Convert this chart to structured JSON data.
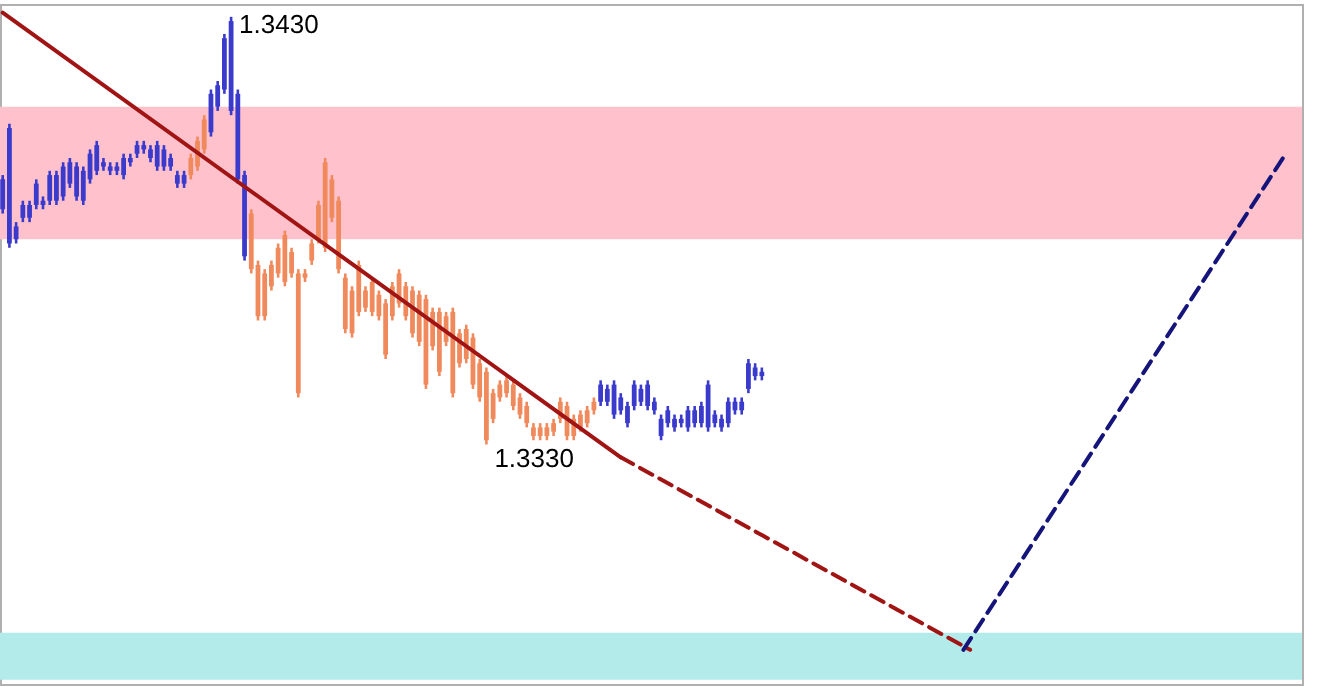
{
  "chart_data": {
    "type": "candlestick",
    "categories": [
      null,
      null,
      null,
      null,
      null,
      null,
      null,
      null,
      null,
      null,
      null,
      null,
      null,
      null,
      null,
      null,
      null,
      null,
      null,
      null,
      null,
      null,
      null,
      null,
      null,
      null,
      null,
      null,
      null,
      null,
      null,
      null,
      null,
      null,
      null,
      null,
      null,
      null,
      null,
      null,
      null,
      null,
      null,
      null,
      null,
      null,
      null,
      null,
      null,
      null,
      null,
      null,
      null,
      null,
      null,
      null,
      null,
      null,
      null,
      null,
      null,
      null,
      null,
      null,
      null,
      null,
      null,
      null,
      null,
      null,
      null,
      null,
      null,
      null,
      null,
      null,
      null,
      null,
      null,
      null,
      null,
      null,
      null,
      null,
      null,
      null,
      null,
      null,
      null,
      null,
      null,
      null,
      null,
      null,
      null,
      null,
      null,
      null,
      null,
      null,
      null,
      null,
      null,
      null,
      null,
      null,
      null,
      null,
      null,
      null,
      null,
      null,
      null,
      null,
      null,
      null,
      null,
      null,
      null,
      null,
      null,
      null,
      null,
      null,
      null,
      null,
      null,
      null,
      null,
      null,
      null,
      null,
      null,
      null,
      null,
      null,
      null,
      null,
      null,
      null,
      null,
      null,
      null,
      null,
      null,
      null,
      null,
      null,
      null,
      null,
      null,
      null,
      null,
      null,
      null,
      null,
      null,
      null,
      null,
      null,
      null,
      null,
      null,
      null,
      null,
      null,
      null,
      null,
      null,
      null,
      null,
      null,
      null,
      null,
      null,
      null,
      null,
      null,
      null,
      null,
      null,
      null,
      null,
      null,
      null,
      null,
      null,
      null,
      null,
      null,
      null,
      null,
      null,
      null
    ],
    "ohlc": [
      [
        1.3385,
        1.3393,
        1.3384,
        1.3392
      ],
      [
        1.3377,
        1.3405,
        1.3376,
        1.3404
      ],
      [
        1.3378,
        1.3382,
        1.3377,
        1.3381
      ],
      [
        1.3383,
        1.3387,
        1.3382,
        1.3386
      ],
      [
        1.3383,
        1.3387,
        1.3382,
        1.3386
      ],
      [
        1.3386,
        1.3392,
        1.3385,
        1.3391
      ],
      [
        1.3386,
        1.3388,
        1.3385,
        1.3387
      ],
      [
        1.3387,
        1.3394,
        1.3386,
        1.3393
      ],
      [
        1.3387,
        1.3394,
        1.3386,
        1.3393
      ],
      [
        1.3388,
        1.3396,
        1.3387,
        1.3395
      ],
      [
        1.3391,
        1.3397,
        1.339,
        1.3396
      ],
      [
        1.3388,
        1.3396,
        1.3387,
        1.3395
      ],
      [
        1.3387,
        1.3395,
        1.3386,
        1.3394
      ],
      [
        1.3392,
        1.3399,
        1.3391,
        1.3398
      ],
      [
        1.3394,
        1.3401,
        1.3393,
        1.34
      ],
      [
        1.3395,
        1.3397,
        1.3394,
        1.3396
      ],
      [
        1.3394,
        1.3396,
        1.3393,
        1.3395
      ],
      [
        1.3394,
        1.3396,
        1.3393,
        1.3395
      ],
      [
        1.3393,
        1.3398,
        1.3392,
        1.3397
      ],
      [
        1.3396,
        1.3398,
        1.3395,
        1.3397
      ],
      [
        1.3398,
        1.3401,
        1.3397,
        1.34
      ],
      [
        1.3399,
        1.3401,
        1.3398,
        1.34
      ],
      [
        1.3397,
        1.34,
        1.3396,
        1.3399
      ],
      [
        1.3395,
        1.3401,
        1.3394,
        1.34
      ],
      [
        1.3395,
        1.34,
        1.3394,
        1.3399
      ],
      [
        1.3395,
        1.3398,
        1.3394,
        1.3397
      ],
      [
        1.3391,
        1.3394,
        1.339,
        1.3393
      ],
      [
        1.3391,
        1.3394,
        1.339,
        1.3393
      ],
      [
        1.3397,
        1.3398,
        1.3392,
        1.3393
      ],
      [
        1.3401,
        1.3402,
        1.3394,
        1.3395
      ],
      [
        1.3406,
        1.3407,
        1.3398,
        1.3399
      ],
      [
        1.3403,
        1.3413,
        1.3402,
        1.3412
      ],
      [
        1.3409,
        1.3415,
        1.3408,
        1.3414
      ],
      [
        1.3413,
        1.3426,
        1.3412,
        1.3425
      ],
      [
        1.3408,
        1.343,
        1.3407,
        1.3429
      ],
      [
        1.3392,
        1.3413,
        1.3391,
        1.3412
      ],
      [
        1.3374,
        1.3394,
        1.3373,
        1.3393
      ],
      [
        1.3384,
        1.3385,
        1.337,
        1.3371
      ],
      [
        1.3372,
        1.3373,
        1.3359,
        1.336
      ],
      [
        1.337,
        1.3371,
        1.3359,
        1.336
      ],
      [
        1.3372,
        1.3373,
        1.3366,
        1.3367
      ],
      [
        1.3376,
        1.3377,
        1.3369,
        1.337
      ],
      [
        1.3379,
        1.338,
        1.3367,
        1.3368
      ],
      [
        1.3375,
        1.3376,
        1.3369,
        1.337
      ],
      [
        1.337,
        1.3371,
        1.3341,
        1.3342
      ],
      [
        1.337,
        1.3371,
        1.3368,
        1.3369
      ],
      [
        1.3377,
        1.3378,
        1.3372,
        1.3373
      ],
      [
        1.3386,
        1.3387,
        1.3377,
        1.3378
      ],
      [
        1.3396,
        1.3397,
        1.3375,
        1.3376
      ],
      [
        1.3392,
        1.3393,
        1.3382,
        1.3383
      ],
      [
        1.3387,
        1.3388,
        1.337,
        1.3371
      ],
      [
        1.3369,
        1.337,
        1.3356,
        1.3357
      ],
      [
        1.3366,
        1.3367,
        1.3355,
        1.3356
      ],
      [
        1.3372,
        1.3373,
        1.336,
        1.3361
      ],
      [
        1.3366,
        1.3367,
        1.3361,
        1.3362
      ],
      [
        1.3368,
        1.3369,
        1.336,
        1.3361
      ],
      [
        1.3365,
        1.3366,
        1.3359,
        1.336
      ],
      [
        1.3363,
        1.3364,
        1.335,
        1.3351
      ],
      [
        1.3367,
        1.3368,
        1.3359,
        1.336
      ],
      [
        1.337,
        1.3371,
        1.3362,
        1.3363
      ],
      [
        1.3367,
        1.3368,
        1.3359,
        1.336
      ],
      [
        1.3366,
        1.3367,
        1.3355,
        1.3356
      ],
      [
        1.3365,
        1.3366,
        1.3353,
        1.3354
      ],
      [
        1.3364,
        1.3365,
        1.3343,
        1.3344
      ],
      [
        1.3361,
        1.3362,
        1.3352,
        1.3353
      ],
      [
        1.3361,
        1.3362,
        1.3346,
        1.3347
      ],
      [
        1.336,
        1.3361,
        1.3353,
        1.3354
      ],
      [
        1.3361,
        1.3362,
        1.3341,
        1.3342
      ],
      [
        1.3356,
        1.3357,
        1.3348,
        1.3349
      ],
      [
        1.3357,
        1.3358,
        1.3349,
        1.335
      ],
      [
        1.3355,
        1.3356,
        1.3343,
        1.3344
      ],
      [
        1.3349,
        1.335,
        1.334,
        1.3341
      ],
      [
        1.3347,
        1.3348,
        1.333,
        1.3331
      ],
      [
        1.3342,
        1.3343,
        1.3335,
        1.3336
      ],
      [
        1.3344,
        1.3345,
        1.334,
        1.3341
      ],
      [
        1.3345,
        1.3346,
        1.3341,
        1.3342
      ],
      [
        1.3344,
        1.3345,
        1.3338,
        1.3339
      ],
      [
        1.3341,
        1.3342,
        1.3336,
        1.3337
      ],
      [
        1.3339,
        1.334,
        1.3334,
        1.3335
      ],
      [
        1.3334,
        1.3335,
        1.3331,
        1.3332
      ],
      [
        1.3334,
        1.3335,
        1.3331,
        1.3332
      ],
      [
        1.3334,
        1.3335,
        1.3331,
        1.3332
      ],
      [
        1.3335,
        1.3336,
        1.3332,
        1.3333
      ],
      [
        1.334,
        1.3341,
        1.3335,
        1.3336
      ],
      [
        1.3339,
        1.334,
        1.3331,
        1.3332
      ],
      [
        1.3336,
        1.3337,
        1.3331,
        1.3332
      ],
      [
        1.3337,
        1.3338,
        1.3333,
        1.3334
      ],
      [
        1.3338,
        1.3339,
        1.3334,
        1.3335
      ],
      [
        1.334,
        1.3341,
        1.3337,
        1.3338
      ],
      [
        1.334,
        1.3345,
        1.3339,
        1.3344
      ],
      [
        1.334,
        1.3344,
        1.3339,
        1.3343
      ],
      [
        1.3337,
        1.3345,
        1.3336,
        1.3344
      ],
      [
        1.3338,
        1.3342,
        1.3337,
        1.3341
      ],
      [
        1.3335,
        1.334,
        1.3334,
        1.3339
      ],
      [
        1.3339,
        1.3345,
        1.3338,
        1.3344
      ],
      [
        1.334,
        1.3344,
        1.3339,
        1.3343
      ],
      [
        1.3339,
        1.3345,
        1.3338,
        1.3344
      ],
      [
        1.3338,
        1.3341,
        1.3337,
        1.334
      ],
      [
        1.3332,
        1.3337,
        1.3331,
        1.3336
      ],
      [
        1.3335,
        1.3339,
        1.3334,
        1.3338
      ],
      [
        1.3334,
        1.3337,
        1.3333,
        1.3336
      ],
      [
        1.3335,
        1.3337,
        1.3334,
        1.3336
      ],
      [
        1.3334,
        1.3339,
        1.3333,
        1.3338
      ],
      [
        1.3335,
        1.3339,
        1.3334,
        1.3338
      ],
      [
        1.3335,
        1.334,
        1.3334,
        1.3339
      ],
      [
        1.3334,
        1.3345,
        1.3333,
        1.3344
      ],
      [
        1.3335,
        1.3338,
        1.3334,
        1.3337
      ],
      [
        1.3334,
        1.3337,
        1.3333,
        1.3336
      ],
      [
        1.3335,
        1.3341,
        1.3334,
        1.334
      ],
      [
        1.3338,
        1.3341,
        1.3337,
        1.334
      ],
      [
        1.3338,
        1.3341,
        1.3337,
        1.334
      ],
      [
        1.3343,
        1.335,
        1.3342,
        1.3349
      ],
      [
        1.3346,
        1.3349,
        1.3345,
        1.3348
      ],
      [
        1.3346,
        1.3348,
        1.3345,
        1.3347
      ],
      null,
      null,
      null,
      null,
      null,
      null,
      null,
      null,
      null,
      null,
      null,
      null,
      null,
      null,
      null,
      null,
      null,
      null,
      null,
      null,
      null,
      null,
      null,
      null,
      null,
      null,
      null,
      null,
      null,
      null,
      null,
      null,
      null,
      null,
      null,
      null,
      null,
      null,
      null,
      null,
      null,
      null,
      null,
      null,
      null,
      null,
      null,
      null,
      null,
      null,
      null,
      null,
      null,
      null,
      null,
      null,
      null,
      null,
      null,
      null,
      null,
      null,
      null,
      null,
      null,
      null,
      null,
      null,
      null,
      null,
      null,
      null,
      null,
      null,
      null,
      null,
      null,
      null,
      null,
      null
    ],
    "colors": [
      "#3a3acc",
      "#3a3acc",
      "#3a3acc",
      "#3a3acc",
      "#3a3acc",
      "#3a3acc",
      "#3a3acc",
      "#3a3acc",
      "#3a3acc",
      "#3a3acc",
      "#3a3acc",
      "#3a3acc",
      "#3a3acc",
      "#3a3acc",
      "#3a3acc",
      "#3a3acc",
      "#3a3acc",
      "#3a3acc",
      "#3a3acc",
      "#3a3acc",
      "#3a3acc",
      "#3a3acc",
      "#3a3acc",
      "#3a3acc",
      "#3a3acc",
      "#3a3acc",
      "#3a3acc",
      "#3a3acc",
      "#f08a5d",
      "#f08a5d",
      "#f08a5d",
      "#3a3acc",
      "#3a3acc",
      "#3a3acc",
      "#3a3acc",
      "#3a3acc",
      "#3a3acc",
      "#f08a5d",
      "#f08a5d",
      "#f08a5d",
      "#f08a5d",
      "#f08a5d",
      "#f08a5d",
      "#f08a5d",
      "#f08a5d",
      "#f08a5d",
      "#f08a5d",
      "#f08a5d",
      "#f08a5d",
      "#f08a5d",
      "#f08a5d",
      "#f08a5d",
      "#f08a5d",
      "#f08a5d",
      "#f08a5d",
      "#f08a5d",
      "#f08a5d",
      "#f08a5d",
      "#f08a5d",
      "#f08a5d",
      "#f08a5d",
      "#f08a5d",
      "#f08a5d",
      "#f08a5d",
      "#f08a5d",
      "#f08a5d",
      "#f08a5d",
      "#f08a5d",
      "#f08a5d",
      "#f08a5d",
      "#f08a5d",
      "#f08a5d",
      "#f08a5d",
      "#f08a5d",
      "#f08a5d",
      "#f08a5d",
      "#f08a5d",
      "#f08a5d",
      "#f08a5d",
      "#f08a5d",
      "#f08a5d",
      "#f08a5d",
      "#f08a5d",
      "#f08a5d",
      "#f08a5d",
      "#f08a5d",
      "#f08a5d",
      "#f08a5d",
      "#f08a5d",
      "#3a3acc",
      "#3a3acc",
      "#3a3acc",
      "#3a3acc",
      "#3a3acc",
      "#3a3acc",
      "#3a3acc",
      "#3a3acc",
      "#3a3acc",
      "#3a3acc",
      "#3a3acc",
      "#3a3acc",
      "#3a3acc",
      "#3a3acc",
      "#3a3acc",
      "#3a3acc",
      "#3a3acc",
      "#3a3acc",
      "#3a3acc",
      "#3a3acc",
      "#3a3acc",
      "#3a3acc",
      "#3a3acc",
      "#3a3acc",
      "#3a3acc",
      null,
      null,
      null,
      null,
      null,
      null,
      null,
      null,
      null,
      null,
      null,
      null,
      null,
      null,
      null,
      null,
      null,
      null,
      null,
      null,
      null,
      null,
      null,
      null,
      null,
      null,
      null,
      null,
      null,
      null,
      null,
      null,
      null,
      null,
      null,
      null,
      null,
      null,
      null,
      null,
      null,
      null,
      null,
      null,
      null,
      null,
      null,
      null,
      null,
      null,
      null,
      null,
      null,
      null,
      null,
      null,
      null,
      null,
      null,
      null,
      null,
      null,
      null,
      null,
      null,
      null,
      null,
      null,
      null,
      null,
      null,
      null,
      null,
      null,
      null,
      null,
      null,
      null,
      null,
      null
    ],
    "series": [
      {
        "type": "line",
        "color": "#a01414",
        "line_style": "solid",
        "values": [
          1.3431,
          null,
          null,
          null,
          null,
          null,
          null,
          null,
          null,
          null,
          null,
          null,
          null,
          null,
          null,
          null,
          null,
          null,
          null,
          null,
          null,
          null,
          null,
          null,
          null,
          null,
          null,
          null,
          null,
          null,
          null,
          null,
          null,
          null,
          null,
          null,
          null,
          null,
          null,
          null,
          null,
          null,
          null,
          null,
          null,
          null,
          null,
          null,
          null,
          null,
          null,
          null,
          null,
          null,
          null,
          null,
          null,
          null,
          null,
          null,
          null,
          null,
          null,
          null,
          null,
          null,
          null,
          null,
          null,
          null,
          null,
          null,
          null,
          null,
          null,
          null,
          null,
          null,
          null,
          null,
          null,
          null,
          null,
          null,
          null,
          null,
          null,
          null,
          null,
          null,
          null,
          null,
          1.3327,
          null,
          null,
          null,
          null,
          null,
          null,
          null,
          null,
          null,
          null,
          null,
          null,
          null,
          null,
          null,
          null,
          null,
          null,
          null,
          null,
          null,
          null,
          null,
          null,
          null,
          null,
          null,
          null,
          null,
          null,
          null,
          null,
          null,
          null,
          null,
          null,
          null,
          null,
          null,
          null,
          null,
          null,
          null,
          null,
          null,
          null,
          null,
          null,
          null,
          null,
          null,
          null,
          null,
          null,
          null,
          null,
          null,
          null,
          null,
          null,
          null,
          null,
          null,
          null,
          null,
          null,
          null,
          null,
          null,
          null,
          null,
          null,
          null,
          null,
          null,
          null,
          null,
          null,
          null,
          null,
          null,
          null,
          null,
          null,
          null,
          null,
          null,
          null,
          null,
          null,
          null,
          null,
          null,
          null,
          null,
          null,
          null,
          null,
          null,
          null,
          null
        ]
      },
      {
        "type": "line",
        "color": "#a01414",
        "line_style": "dashed",
        "values": [
          null,
          null,
          null,
          null,
          null,
          null,
          null,
          null,
          null,
          null,
          null,
          null,
          null,
          null,
          null,
          null,
          null,
          null,
          null,
          null,
          null,
          null,
          null,
          null,
          null,
          null,
          null,
          null,
          null,
          null,
          null,
          null,
          null,
          null,
          null,
          null,
          null,
          null,
          null,
          null,
          null,
          null,
          null,
          null,
          null,
          null,
          null,
          null,
          null,
          null,
          null,
          null,
          null,
          null,
          null,
          null,
          null,
          null,
          null,
          null,
          null,
          null,
          null,
          null,
          null,
          null,
          null,
          null,
          null,
          null,
          null,
          null,
          null,
          null,
          null,
          null,
          null,
          null,
          null,
          null,
          null,
          null,
          null,
          null,
          null,
          null,
          null,
          null,
          null,
          null,
          null,
          null,
          1.3327,
          null,
          null,
          null,
          null,
          null,
          null,
          null,
          null,
          null,
          null,
          null,
          null,
          null,
          null,
          null,
          null,
          null,
          null,
          null,
          null,
          null,
          null,
          null,
          null,
          null,
          null,
          null,
          null,
          null,
          null,
          null,
          null,
          null,
          null,
          null,
          null,
          null,
          null,
          null,
          null,
          null,
          null,
          null,
          null,
          null,
          null,
          null,
          null,
          null,
          null,
          null,
          1.3282,
          null,
          null,
          null,
          null,
          null,
          null,
          null,
          null,
          null,
          null,
          null,
          null,
          null,
          null,
          null,
          null,
          null,
          null,
          null,
          null,
          null,
          null,
          null,
          null,
          null,
          null,
          null,
          null,
          null,
          null,
          null,
          null,
          null,
          null,
          null,
          null,
          null,
          null,
          null,
          null,
          null,
          null,
          null,
          null,
          null,
          null,
          null,
          null,
          null
        ]
      },
      {
        "type": "line",
        "color": "#14147a",
        "line_style": "dashed",
        "values": [
          null,
          null,
          null,
          null,
          null,
          null,
          null,
          null,
          null,
          null,
          null,
          null,
          null,
          null,
          null,
          null,
          null,
          null,
          null,
          null,
          null,
          null,
          null,
          null,
          null,
          null,
          null,
          null,
          null,
          null,
          null,
          null,
          null,
          null,
          null,
          null,
          null,
          null,
          null,
          null,
          null,
          null,
          null,
          null,
          null,
          null,
          null,
          null,
          null,
          null,
          null,
          null,
          null,
          null,
          null,
          null,
          null,
          null,
          null,
          null,
          null,
          null,
          null,
          null,
          null,
          null,
          null,
          null,
          null,
          null,
          null,
          null,
          null,
          null,
          null,
          null,
          null,
          null,
          null,
          null,
          null,
          null,
          null,
          null,
          null,
          null,
          null,
          null,
          null,
          null,
          null,
          null,
          null,
          null,
          null,
          null,
          null,
          null,
          null,
          null,
          null,
          null,
          null,
          null,
          null,
          null,
          null,
          null,
          null,
          null,
          null,
          null,
          null,
          null,
          null,
          null,
          null,
          null,
          null,
          null,
          null,
          null,
          null,
          null,
          null,
          null,
          null,
          null,
          null,
          null,
          null,
          null,
          null,
          null,
          null,
          null,
          null,
          null,
          null,
          null,
          null,
          null,
          null,
          1.3282,
          null,
          null,
          null,
          null,
          null,
          null,
          null,
          null,
          null,
          null,
          null,
          null,
          null,
          null,
          null,
          null,
          null,
          null,
          null,
          null,
          null,
          null,
          null,
          null,
          null,
          null,
          null,
          null,
          null,
          null,
          null,
          null,
          null,
          null,
          null,
          null,
          null,
          null,
          null,
          null,
          null,
          null,
          null,
          null,
          null,
          null,
          null,
          1.3398,
          null,
          null
        ]
      }
    ],
    "bands": [
      {
        "axis": "y",
        "from": 1.3378,
        "to": 1.3409,
        "color": "#ffc2cc"
      },
      {
        "axis": "y",
        "from": 1.3275,
        "to": 1.3286,
        "color": "#b3ebeb"
      }
    ],
    "annotations": [
      "1.3430",
      "1.3330"
    ],
    "ylim": [
      1.3274,
      1.3433
    ],
    "tick_labels": false
  }
}
